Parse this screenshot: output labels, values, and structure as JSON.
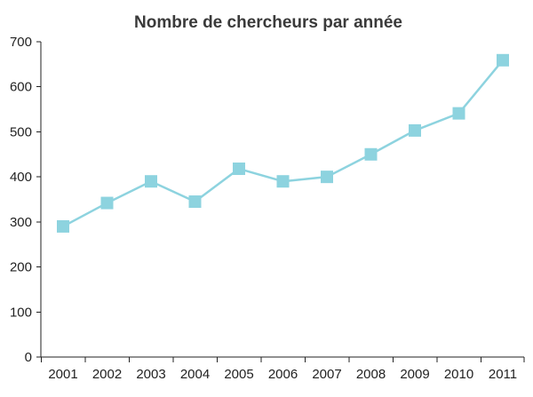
{
  "chart_data": {
    "type": "line",
    "title": "Nombre de chercheurs par année",
    "xlabel": "",
    "ylabel": "",
    "categories": [
      "2001",
      "2002",
      "2003",
      "2004",
      "2005",
      "2006",
      "2007",
      "2008",
      "2009",
      "2010",
      "2011"
    ],
    "series": [
      {
        "values": [
          290,
          342,
          390,
          345,
          418,
          390,
          400,
          450,
          503,
          541,
          659
        ]
      }
    ],
    "ylim": [
      0,
      700
    ],
    "yticks": [
      0,
      100,
      200,
      300,
      400,
      500,
      600,
      700
    ],
    "grid": false,
    "legend": "none",
    "colors": {
      "series": "#8dd3df",
      "axis": "#222222",
      "title": "#3a3a3a"
    }
  }
}
